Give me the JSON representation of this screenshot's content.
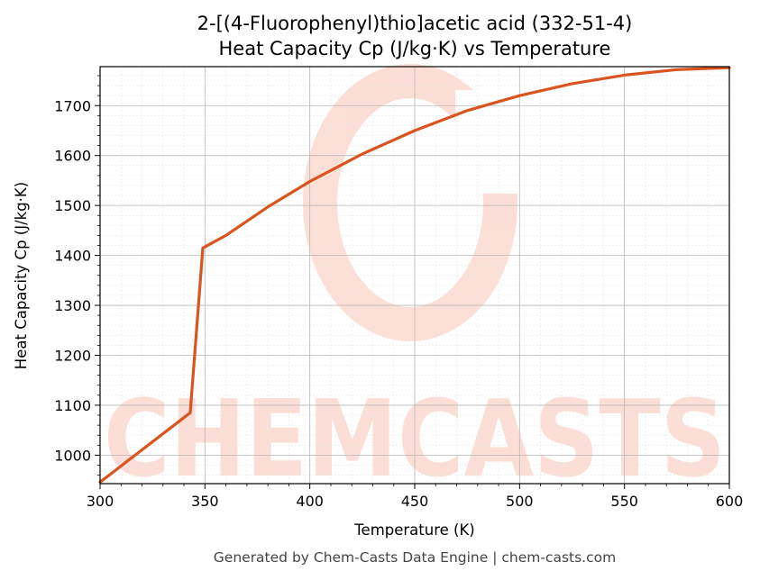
{
  "chart_data": {
    "type": "line",
    "title_line1": "2-[(4-Fluorophenyl)thio]acetic acid (332-51-4)",
    "title_line2": "Heat Capacity Cp (J/kg·K) vs Temperature",
    "xlabel": "Temperature (K)",
    "ylabel": "Heat Capacity Cp (J/kg·K)",
    "xlim": [
      300,
      600
    ],
    "ylim": [
      943,
      1778
    ],
    "xticks": [
      300,
      350,
      400,
      450,
      500,
      550,
      600
    ],
    "yticks": [
      1000,
      1100,
      1200,
      1300,
      1400,
      1500,
      1600,
      1700
    ],
    "grid": true,
    "series": [
      {
        "color": "#d9541e",
        "x": [
          300,
          343,
          349,
          360,
          380,
          400,
          425,
          450,
          475,
          500,
          525,
          550,
          575,
          600
        ],
        "y": [
          946,
          1085,
          1415,
          1440,
          1497,
          1548,
          1603,
          1650,
          1690,
          1720,
          1744,
          1761,
          1772,
          1776
        ]
      }
    ]
  },
  "watermark": {
    "text": "CHEMCASTS",
    "color": "#fcd9d0"
  },
  "footer": "Generated by Chem-Casts Data Engine | chem-casts.com"
}
